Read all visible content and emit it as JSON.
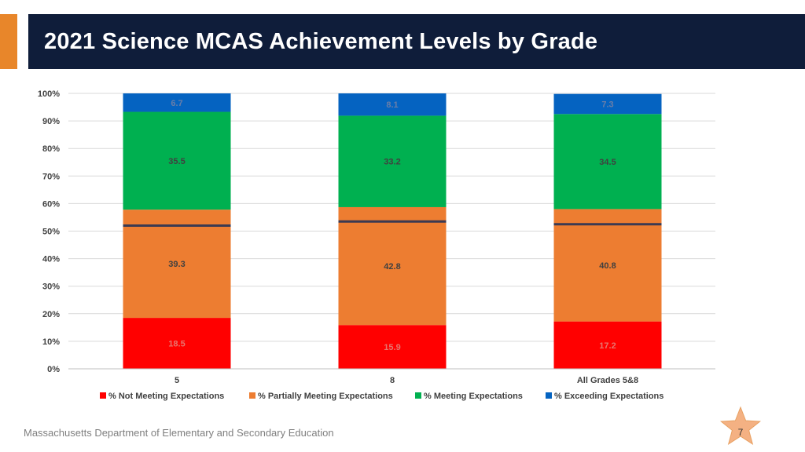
{
  "header": {
    "title": "2021 Science MCAS Achievement Levels by Grade"
  },
  "footer": {
    "org": "Massachusetts Department of Elementary and Secondary Education",
    "page_number": "7"
  },
  "colors": {
    "title_bg": "#0f1d3a",
    "accent": "#e8862a",
    "not_meeting": "#ff0000",
    "partially_meeting": "#ed7d31",
    "meeting": "#00b050",
    "exceeding": "#0563c1",
    "reference_line": "#3b3a52",
    "star": "#f4b183"
  },
  "chart_data": {
    "type": "bar",
    "stacked": true,
    "percent_stacked": true,
    "title": "",
    "xlabel": "",
    "ylabel": "",
    "ylim": [
      0,
      100
    ],
    "y_ticks": [
      "0%",
      "10%",
      "20%",
      "30%",
      "40%",
      "50%",
      "60%",
      "70%",
      "80%",
      "90%",
      "100%"
    ],
    "grid": true,
    "legend_position": "bottom",
    "categories": [
      "5",
      "8",
      "All Grades 5&8"
    ],
    "series": [
      {
        "name": "% Not Meeting Expectations",
        "color": "#ff0000",
        "values": [
          18.5,
          15.9,
          17.2
        ],
        "labels": [
          "18.5",
          "15.9",
          "17.2"
        ]
      },
      {
        "name": "% Partially Meeting Expectations",
        "color": "#ed7d31",
        "values": [
          39.3,
          42.8,
          40.8
        ],
        "labels": [
          "39.3",
          "42.8",
          "40.8"
        ]
      },
      {
        "name": "% Meeting Expectations",
        "color": "#00b050",
        "values": [
          35.5,
          33.2,
          34.5
        ],
        "labels": [
          "35.5",
          "33.2",
          "34.5"
        ]
      },
      {
        "name": "% Exceeding Expectations",
        "color": "#0563c1",
        "values": [
          6.7,
          8.1,
          7.3
        ],
        "labels": [
          "6.7",
          "8.1",
          "7.3"
        ]
      }
    ],
    "reference_lines": {
      "name": "reference-marker",
      "values": [
        52,
        53.5,
        52.5
      ]
    }
  }
}
